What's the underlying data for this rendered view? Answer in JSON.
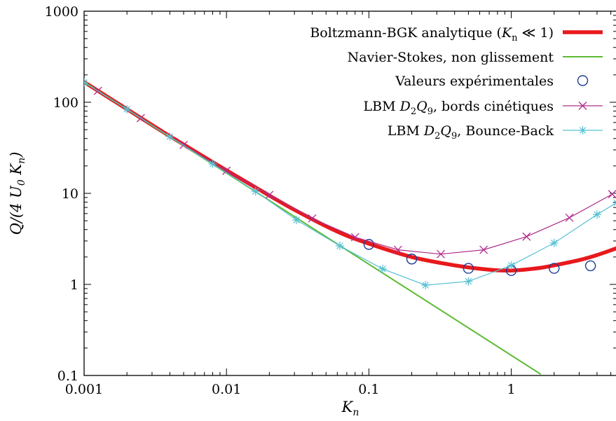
{
  "chart_data": {
    "type": "line",
    "xlabel": "K_n",
    "ylabel": "Q/(4 U_0 K_n)",
    "xscale": "log",
    "yscale": "log",
    "xlim": [
      0.001,
      5.5
    ],
    "ylim": [
      0.1,
      1000
    ],
    "xticks": [
      "0.001",
      "0.01",
      "0.1",
      "1"
    ],
    "xtick_values": [
      0.001,
      0.01,
      0.1,
      1
    ],
    "yticks": [
      "0.1",
      "1",
      "10",
      "100",
      "1000"
    ],
    "ytick_values": [
      0.1,
      1,
      10,
      100,
      1000
    ],
    "grid": false,
    "legend_position": "top-right",
    "series": [
      {
        "name": "Boltzmann-BGK analytique (Kn ≪ 1)",
        "legend_label": {
          "pre": "Boltzmann-BGK analytique (",
          "sym": "K",
          "sub": "n",
          "post": " ≪ 1)"
        },
        "style": "line",
        "color": "#e8191c",
        "x": [
          0.001,
          0.002,
          0.004,
          0.008,
          0.016,
          0.03,
          0.06,
          0.1,
          0.2,
          0.4,
          0.7,
          1.0,
          1.5,
          2.0,
          3.0,
          4.0,
          5.5
        ],
        "y": [
          167.0,
          84.0,
          42.5,
          22.0,
          11.6,
          6.6,
          3.8,
          2.8,
          2.0,
          1.62,
          1.45,
          1.42,
          1.5,
          1.62,
          1.85,
          2.1,
          2.5
        ]
      },
      {
        "name": "Navier-Stokes, non glissement",
        "legend_label": {
          "pre": "Navier-Stokes, non glissement"
        },
        "style": "line",
        "color": "#5dbb33",
        "x": [
          0.001,
          1.6
        ],
        "y": [
          167.0,
          0.104
        ]
      },
      {
        "name": "Valeurs expérimentales",
        "legend_label": {
          "pre": "Valeurs expérimentales"
        },
        "style": "points",
        "marker": "circle",
        "color": "#1f3a93",
        "x": [
          0.1,
          0.2,
          0.5,
          1.0,
          2.0,
          3.6
        ],
        "y": [
          2.75,
          1.9,
          1.5,
          1.42,
          1.5,
          1.6
        ]
      },
      {
        "name": "LBM D2Q9, bords cinétiques",
        "legend_label": {
          "pre": "LBM ",
          "sym": "D",
          "sub": "2",
          "sym2": "Q",
          "sub2": "9",
          "post": ", bords cinétiques"
        },
        "style": "linespoints",
        "marker": "x",
        "color": "#b02c8c",
        "x": [
          0.00125,
          0.0025,
          0.005,
          0.01,
          0.02,
          0.04,
          0.08,
          0.16,
          0.32,
          0.64,
          1.28,
          2.56,
          5.12
        ],
        "y": [
          133.5,
          67.0,
          34.0,
          17.7,
          9.6,
          5.3,
          3.3,
          2.4,
          2.15,
          2.4,
          3.35,
          5.4,
          9.8
        ]
      },
      {
        "name": "LBM D2Q9, Bounce-Back",
        "legend_label": {
          "pre": "LBM ",
          "sym": "D",
          "sub": "2",
          "sym2": "Q",
          "sub2": "9",
          "post": ", Bounce-Back"
        },
        "style": "linespoints",
        "marker": "asterisk",
        "color": "#56c1d4",
        "x": [
          0.001,
          0.002,
          0.004,
          0.008,
          0.016,
          0.031,
          0.0625,
          0.125,
          0.25,
          0.5,
          1.0,
          2.0,
          4.0,
          5.5
        ],
        "y": [
          165.0,
          84.0,
          42.0,
          21.0,
          10.5,
          5.1,
          2.65,
          1.48,
          0.98,
          1.08,
          1.62,
          2.85,
          5.85,
          7.9
        ]
      }
    ]
  }
}
